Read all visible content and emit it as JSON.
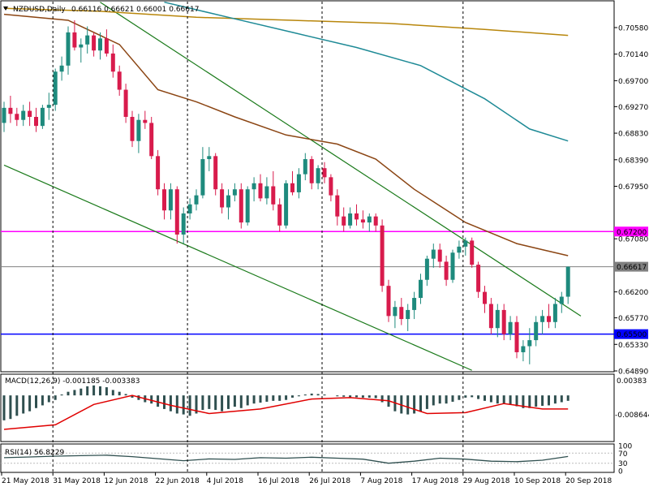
{
  "chart_data": {
    "type": "candlestick",
    "header": {
      "symbol": "NZDUSD,Daily",
      "ohlc": "0.66116 0.66621 0.66001 0.66617"
    },
    "price_axis": {
      "range": [
        0.6489,
        0.7101
      ],
      "ticks": [
        "0.70580",
        "0.70140",
        "0.69700",
        "0.69270",
        "0.68830",
        "0.68390",
        "0.67950",
        "0.67080",
        "0.66200",
        "0.65770",
        "0.65330",
        "0.64890"
      ],
      "tick_values": [
        0.7058,
        0.7014,
        0.697,
        0.6927,
        0.6883,
        0.6839,
        0.6795,
        0.6708,
        0.662,
        0.6577,
        0.6533,
        0.6489
      ]
    },
    "horizontal_levels": [
      {
        "label": "0.67200",
        "value": 0.672,
        "color": "#ff00ff"
      },
      {
        "label": "0.65500",
        "value": 0.655,
        "color": "#0000ff"
      },
      {
        "label": "0.66617",
        "value": 0.66617,
        "color": "#808080"
      }
    ],
    "x_axis": {
      "labels": [
        "21 May 2018",
        "31 May 2018",
        "12 Jun 2018",
        "22 Jun 2018",
        "4 Jul 2018",
        "16 Jul 2018",
        "26 Jul 2018",
        "7 Aug 2018",
        "17 Aug 2018",
        "29 Aug 2018",
        "10 Sep 2018",
        "20 Sep 2018"
      ],
      "label_bar_index": [
        0,
        8,
        16,
        24,
        32,
        40,
        48,
        56,
        64,
        72,
        80,
        88
      ]
    },
    "vertical_separators_bar_index": [
      8,
      29,
      50,
      72
    ],
    "colors": {
      "bull": "#1e8a7d",
      "bear": "#d81b4c",
      "ma_slow": "#b8860b",
      "ma_mid": "#1e8a96",
      "ma_fast": "#8b4513",
      "trend": "#1a7a1a",
      "macd_line": "#e00000",
      "macd_hist": "#2f4f4f",
      "rsi": "#2f4f4f"
    },
    "candles": [
      [
        0.69,
        0.6935,
        0.6885,
        0.6925
      ],
      [
        0.6925,
        0.6945,
        0.69,
        0.6915
      ],
      [
        0.6915,
        0.6925,
        0.6895,
        0.6905
      ],
      [
        0.6905,
        0.693,
        0.6895,
        0.692
      ],
      [
        0.692,
        0.6935,
        0.6895,
        0.691
      ],
      [
        0.691,
        0.6925,
        0.6885,
        0.6895
      ],
      [
        0.6895,
        0.693,
        0.689,
        0.6925
      ],
      [
        0.6925,
        0.695,
        0.6905,
        0.693
      ],
      [
        0.693,
        0.699,
        0.692,
        0.6985
      ],
      [
        0.6985,
        0.701,
        0.697,
        0.6995
      ],
      [
        0.6995,
        0.706,
        0.698,
        0.705
      ],
      [
        0.705,
        0.707,
        0.702,
        0.7025
      ],
      [
        0.7025,
        0.704,
        0.7,
        0.703
      ],
      [
        0.703,
        0.706,
        0.7015,
        0.7045
      ],
      [
        0.7045,
        0.705,
        0.701,
        0.702
      ],
      [
        0.702,
        0.705,
        0.7005,
        0.704
      ],
      [
        0.704,
        0.7055,
        0.701,
        0.7015
      ],
      [
        0.7015,
        0.703,
        0.6975,
        0.6985
      ],
      [
        0.6985,
        0.6995,
        0.6945,
        0.6955
      ],
      [
        0.6955,
        0.6965,
        0.69,
        0.691
      ],
      [
        0.691,
        0.692,
        0.686,
        0.687
      ],
      [
        0.687,
        0.6915,
        0.685,
        0.6905
      ],
      [
        0.6905,
        0.692,
        0.689,
        0.69
      ],
      [
        0.69,
        0.691,
        0.684,
        0.6845
      ],
      [
        0.6845,
        0.6855,
        0.678,
        0.679
      ],
      [
        0.679,
        0.68,
        0.674,
        0.6755
      ],
      [
        0.6755,
        0.68,
        0.674,
        0.679
      ],
      [
        0.679,
        0.6795,
        0.67,
        0.6715
      ],
      [
        0.6715,
        0.676,
        0.67,
        0.675
      ],
      [
        0.675,
        0.6775,
        0.674,
        0.6765
      ],
      [
        0.6765,
        0.679,
        0.6755,
        0.678
      ],
      [
        0.678,
        0.686,
        0.6775,
        0.684
      ],
      [
        0.684,
        0.686,
        0.682,
        0.6845
      ],
      [
        0.6845,
        0.685,
        0.678,
        0.679
      ],
      [
        0.679,
        0.68,
        0.675,
        0.676
      ],
      [
        0.676,
        0.679,
        0.674,
        0.678
      ],
      [
        0.678,
        0.68,
        0.677,
        0.679
      ],
      [
        0.679,
        0.68,
        0.6725,
        0.6735
      ],
      [
        0.6735,
        0.6795,
        0.673,
        0.679
      ],
      [
        0.679,
        0.681,
        0.677,
        0.68
      ],
      [
        0.68,
        0.6815,
        0.677,
        0.6775
      ],
      [
        0.6775,
        0.681,
        0.6765,
        0.6795
      ],
      [
        0.6795,
        0.682,
        0.6755,
        0.6765
      ],
      [
        0.6765,
        0.6775,
        0.672,
        0.673
      ],
      [
        0.673,
        0.6805,
        0.6725,
        0.68
      ],
      [
        0.68,
        0.682,
        0.678,
        0.6785
      ],
      [
        0.6785,
        0.6825,
        0.6775,
        0.6815
      ],
      [
        0.6815,
        0.685,
        0.6805,
        0.684
      ],
      [
        0.684,
        0.6845,
        0.679,
        0.68
      ],
      [
        0.68,
        0.683,
        0.679,
        0.6825
      ],
      [
        0.6825,
        0.6835,
        0.68,
        0.681
      ],
      [
        0.681,
        0.6815,
        0.677,
        0.678
      ],
      [
        0.678,
        0.679,
        0.673,
        0.6745
      ],
      [
        0.6745,
        0.676,
        0.672,
        0.673
      ],
      [
        0.673,
        0.676,
        0.6725,
        0.675
      ],
      [
        0.675,
        0.6765,
        0.673,
        0.674
      ],
      [
        0.674,
        0.6755,
        0.6725,
        0.6735
      ],
      [
        0.6735,
        0.675,
        0.672,
        0.6745
      ],
      [
        0.6745,
        0.675,
        0.672,
        0.673
      ],
      [
        0.673,
        0.674,
        0.662,
        0.663
      ],
      [
        0.663,
        0.664,
        0.657,
        0.658
      ],
      [
        0.658,
        0.6605,
        0.656,
        0.6595
      ],
      [
        0.6595,
        0.661,
        0.6565,
        0.6575
      ],
      [
        0.6575,
        0.66,
        0.6555,
        0.659
      ],
      [
        0.659,
        0.662,
        0.6575,
        0.661
      ],
      [
        0.661,
        0.665,
        0.66,
        0.664
      ],
      [
        0.664,
        0.668,
        0.663,
        0.6675
      ],
      [
        0.6675,
        0.67,
        0.666,
        0.669
      ],
      [
        0.669,
        0.67,
        0.666,
        0.667
      ],
      [
        0.667,
        0.668,
        0.663,
        0.664
      ],
      [
        0.664,
        0.669,
        0.6635,
        0.6685
      ],
      [
        0.6685,
        0.6705,
        0.6675,
        0.6695
      ],
      [
        0.6695,
        0.671,
        0.668,
        0.6705
      ],
      [
        0.6705,
        0.671,
        0.666,
        0.6665
      ],
      [
        0.6665,
        0.667,
        0.661,
        0.662
      ],
      [
        0.662,
        0.663,
        0.6585,
        0.66
      ],
      [
        0.66,
        0.661,
        0.655,
        0.656
      ],
      [
        0.656,
        0.66,
        0.6545,
        0.659
      ],
      [
        0.659,
        0.66,
        0.654,
        0.655
      ],
      [
        0.655,
        0.658,
        0.654,
        0.657
      ],
      [
        0.657,
        0.658,
        0.651,
        0.652
      ],
      [
        0.652,
        0.654,
        0.6505,
        0.653
      ],
      [
        0.653,
        0.656,
        0.65,
        0.654
      ],
      [
        0.654,
        0.658,
        0.653,
        0.657
      ],
      [
        0.657,
        0.659,
        0.655,
        0.658
      ],
      [
        0.658,
        0.66,
        0.656,
        0.657
      ],
      [
        0.657,
        0.661,
        0.656,
        0.66
      ],
      [
        0.66,
        0.662,
        0.6585,
        0.6612
      ],
      [
        0.6612,
        0.6662,
        0.66,
        0.66617
      ]
    ],
    "ma_slow": [
      [
        0,
        0.709
      ],
      [
        15,
        0.7085
      ],
      [
        30,
        0.7075
      ],
      [
        45,
        0.707
      ],
      [
        60,
        0.7065
      ],
      [
        75,
        0.7055
      ],
      [
        88,
        0.7045
      ]
    ],
    "ma_mid": [
      [
        25,
        0.71
      ],
      [
        35,
        0.7075
      ],
      [
        45,
        0.705
      ],
      [
        55,
        0.7025
      ],
      [
        65,
        0.6995
      ],
      [
        75,
        0.694
      ],
      [
        82,
        0.689
      ],
      [
        88,
        0.687
      ]
    ],
    "ma_fast": [
      [
        0,
        0.708
      ],
      [
        10,
        0.707
      ],
      [
        18,
        0.703
      ],
      [
        24,
        0.6955
      ],
      [
        30,
        0.6935
      ],
      [
        36,
        0.691
      ],
      [
        44,
        0.688
      ],
      [
        52,
        0.6865
      ],
      [
        58,
        0.684
      ],
      [
        64,
        0.679
      ],
      [
        72,
        0.6735
      ],
      [
        80,
        0.67
      ],
      [
        84,
        0.669
      ],
      [
        88,
        0.668
      ]
    ],
    "trend_lines": [
      [
        [
          15,
          0.71
        ],
        [
          90,
          0.658
        ]
      ],
      [
        [
          0,
          0.683
        ],
        [
          73,
          0.649
        ]
      ]
    ],
    "macd": {
      "label": "MACD(12,26,9) -0.001185 -0.003383",
      "scale_top": "0.00383",
      "scale_bottom": "-0.008644",
      "range": [
        -0.01,
        0.0045
      ],
      "hist": [
        -0.0055,
        -0.0052,
        -0.0045,
        -0.004,
        -0.0035,
        -0.0028,
        -0.0022,
        -0.0015,
        -0.001,
        0.0002,
        0.0008,
        0.0012,
        0.0015,
        0.002,
        0.0022,
        0.002,
        0.0018,
        0.0012,
        0.0008,
        0.0003,
        -0.0005,
        -0.001,
        -0.0015,
        -0.0018,
        -0.0025,
        -0.003,
        -0.0035,
        -0.004,
        -0.0042,
        -0.0045,
        -0.004,
        -0.0032,
        -0.003,
        -0.0032,
        -0.0035,
        -0.003,
        -0.0025,
        -0.0028,
        -0.0022,
        -0.0018,
        -0.0016,
        -0.0014,
        -0.0012,
        -0.0012,
        -0.001,
        -0.0005,
        -0.0002,
        0.0002,
        0.0004,
        0.0003,
        0.0002,
        0.0,
        -0.0002,
        -0.0003,
        -0.0004,
        -0.0004,
        -0.0005,
        -0.0005,
        -0.0006,
        -0.0015,
        -0.0025,
        -0.0035,
        -0.004,
        -0.0042,
        -0.004,
        -0.0036,
        -0.003,
        -0.0022,
        -0.0018,
        -0.0018,
        -0.0014,
        -0.001,
        -0.0005,
        -0.0004,
        -0.0008,
        -0.0012,
        -0.0015,
        -0.0018,
        -0.0018,
        -0.002,
        -0.0024,
        -0.0028,
        -0.0028,
        -0.0025,
        -0.0023,
        -0.0022,
        -0.0018,
        -0.0015,
        -0.0012
      ],
      "signal": [
        [
          0,
          -0.0075
        ],
        [
          8,
          -0.0065
        ],
        [
          14,
          -0.002
        ],
        [
          20,
          0.0
        ],
        [
          26,
          -0.0022
        ],
        [
          32,
          -0.004
        ],
        [
          40,
          -0.003
        ],
        [
          48,
          -0.0008
        ],
        [
          54,
          -0.0005
        ],
        [
          60,
          -0.0012
        ],
        [
          66,
          -0.004
        ],
        [
          72,
          -0.0038
        ],
        [
          78,
          -0.0018
        ],
        [
          84,
          -0.003
        ],
        [
          88,
          -0.003
        ]
      ]
    },
    "rsi": {
      "label": "RSI(14) 56.8229",
      "levels": [
        "100",
        "70",
        "30",
        "0"
      ],
      "level_values": [
        100,
        70,
        30,
        0
      ],
      "values": [
        [
          0,
          52
        ],
        [
          4,
          55
        ],
        [
          8,
          58
        ],
        [
          12,
          60
        ],
        [
          16,
          62
        ],
        [
          20,
          56
        ],
        [
          24,
          48
        ],
        [
          28,
          40
        ],
        [
          32,
          47
        ],
        [
          36,
          45
        ],
        [
          40,
          52
        ],
        [
          44,
          50
        ],
        [
          48,
          54
        ],
        [
          52,
          50
        ],
        [
          56,
          46
        ],
        [
          60,
          30
        ],
        [
          64,
          38
        ],
        [
          68,
          50
        ],
        [
          72,
          46
        ],
        [
          76,
          38
        ],
        [
          80,
          36
        ],
        [
          84,
          42
        ],
        [
          88,
          56.8
        ]
      ]
    }
  }
}
